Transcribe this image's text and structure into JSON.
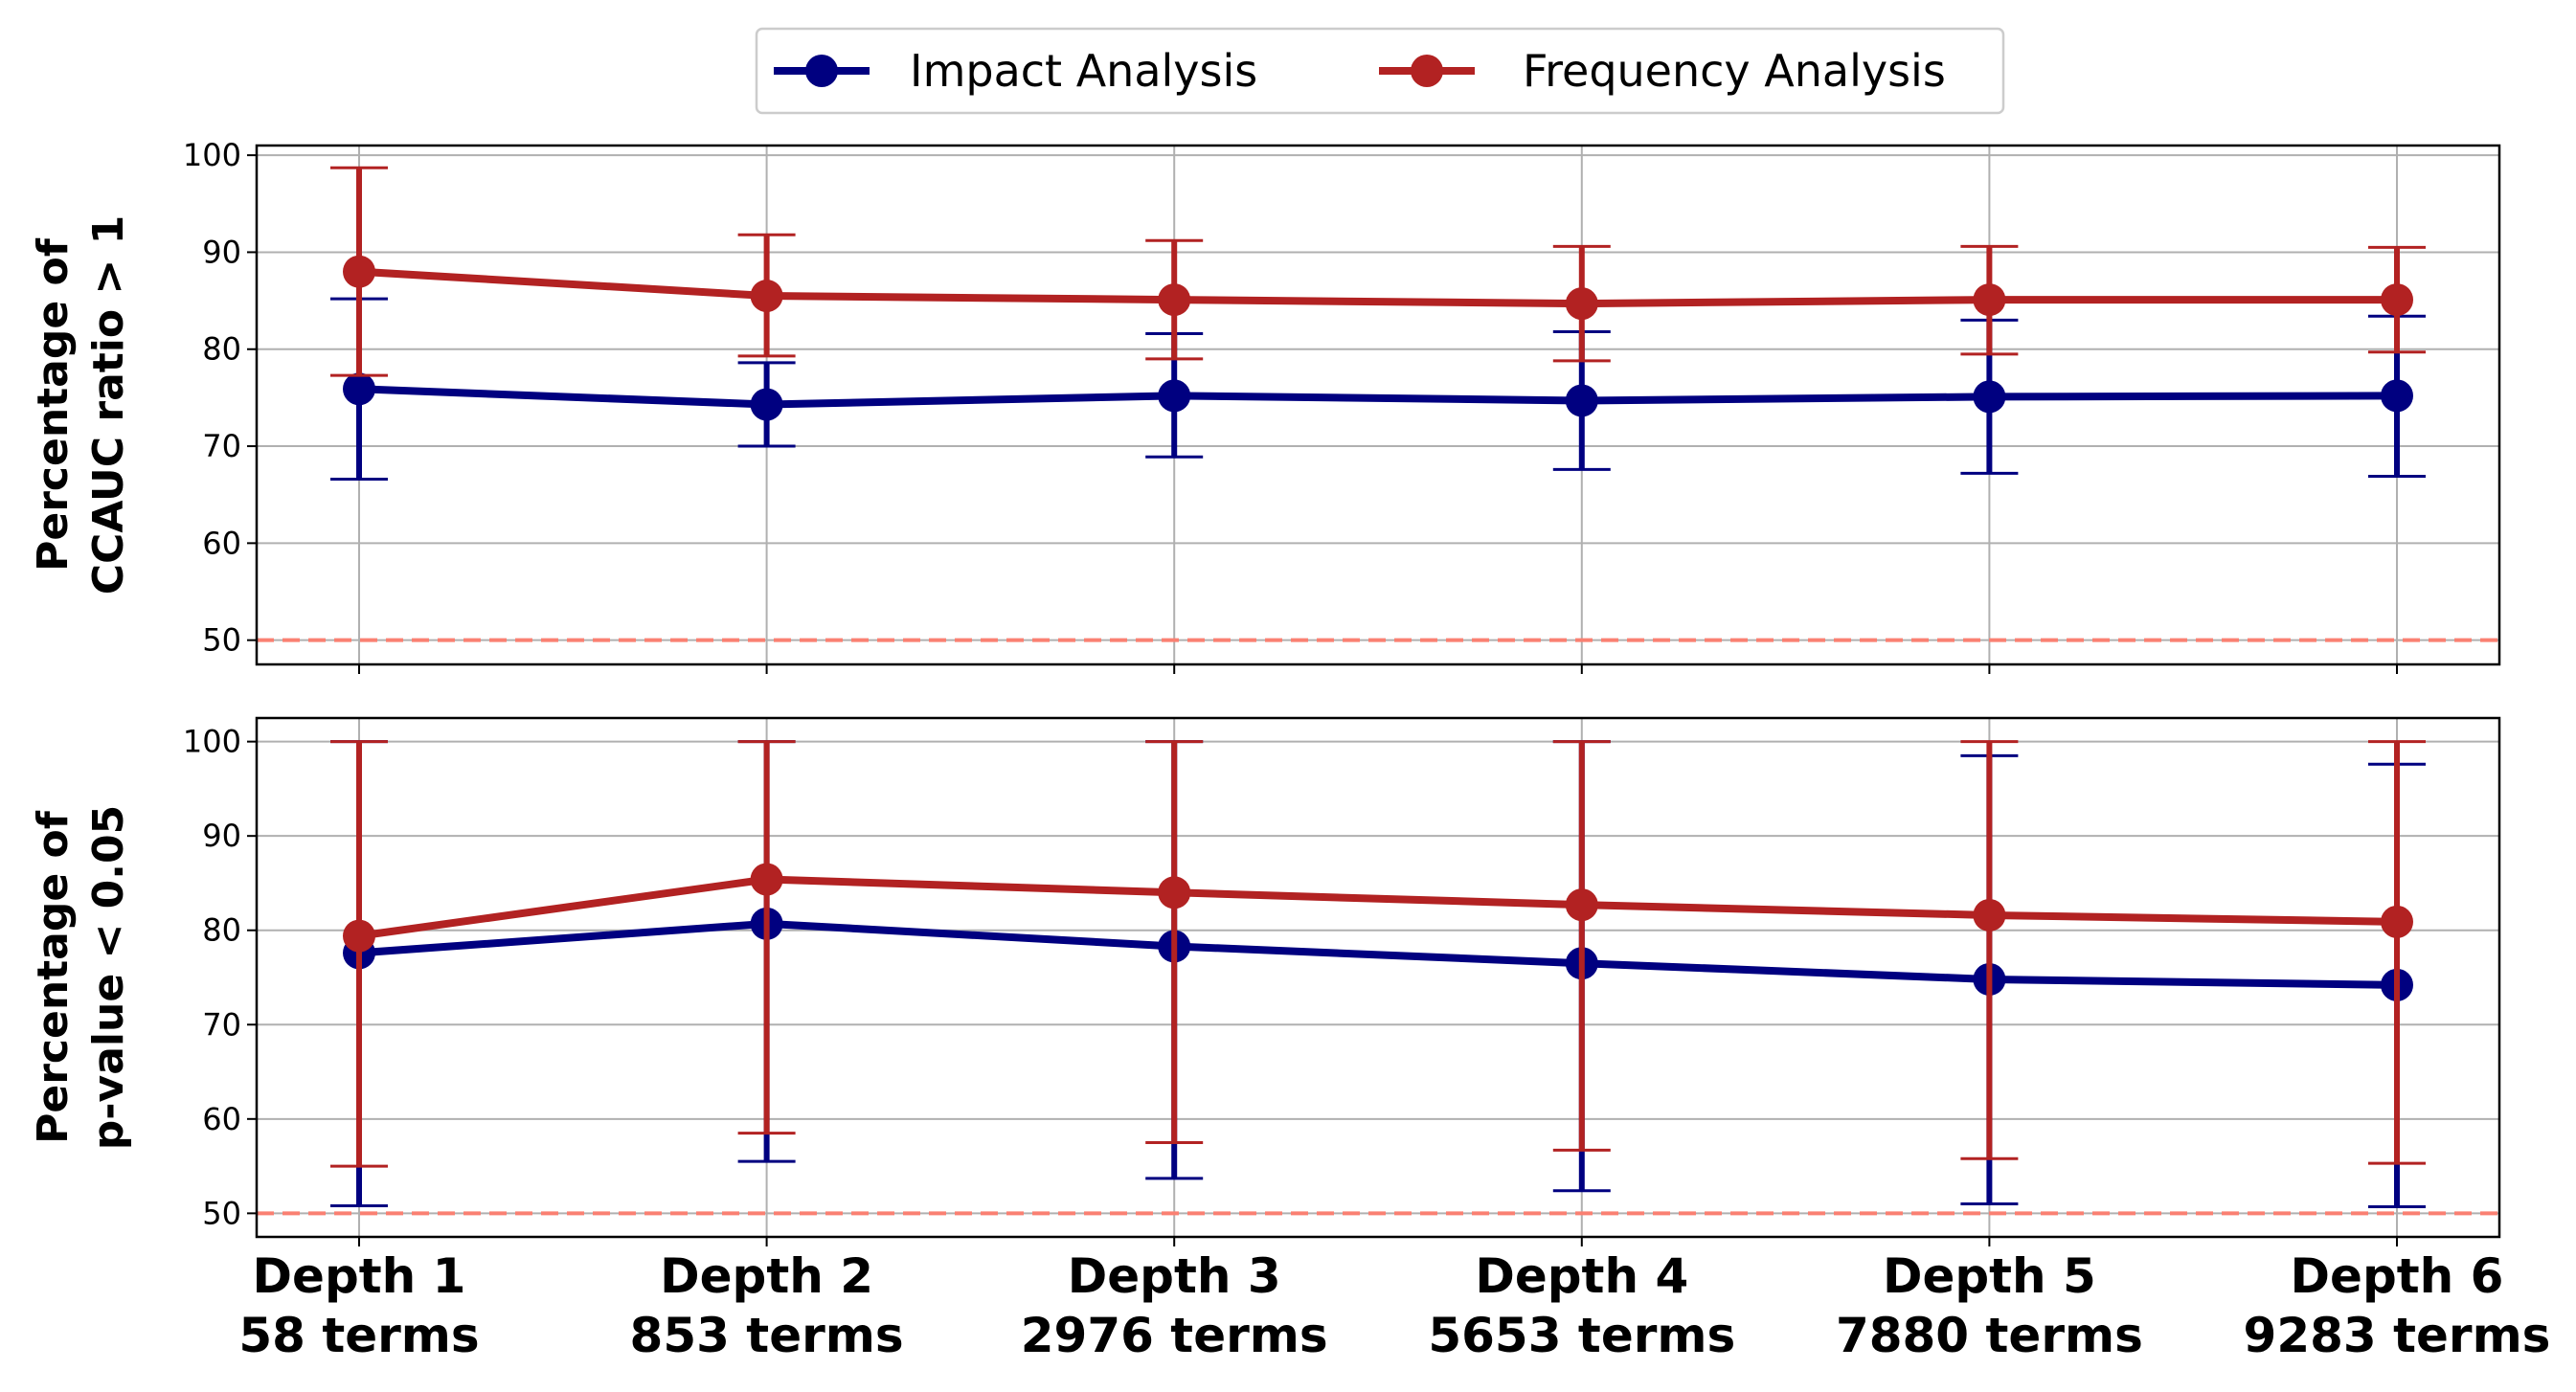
{
  "colors": {
    "impact": "#000080",
    "frequency": "#b22222",
    "reference": "#fa8072",
    "grid": "#b0b0b0"
  },
  "legend": {
    "position": "top-center",
    "items": [
      {
        "label": "Impact Analysis",
        "color": "#000080"
      },
      {
        "label": "Frequency Analysis",
        "color": "#b22222"
      }
    ]
  },
  "chart_data": [
    {
      "type": "line",
      "ylabel": [
        "Percentage of",
        "CCAUC ratio > 1"
      ],
      "ylim": [
        47.5,
        101
      ],
      "yticks": [
        50,
        60,
        70,
        80,
        90,
        100
      ],
      "grid": true,
      "reference_line": 50,
      "categories": [
        [
          "Depth 1",
          "58 terms"
        ],
        [
          "Depth 2",
          "853 terms"
        ],
        [
          "Depth 3",
          "2976 terms"
        ],
        [
          "Depth 4",
          "5653 terms"
        ],
        [
          "Depth 5",
          "7880 terms"
        ],
        [
          "Depth 6",
          "9283 terms"
        ]
      ],
      "series": [
        {
          "name": "Impact Analysis",
          "values": [
            75.9,
            74.3,
            75.2,
            74.7,
            75.1,
            75.2
          ],
          "err_low": [
            66.6,
            70.0,
            68.9,
            67.6,
            67.2,
            66.9
          ],
          "err_high": [
            85.2,
            78.6,
            81.6,
            81.8,
            83.0,
            83.4
          ]
        },
        {
          "name": "Frequency Analysis",
          "values": [
            88.0,
            85.5,
            85.1,
            84.7,
            85.1,
            85.1
          ],
          "err_low": [
            77.3,
            79.3,
            79.0,
            78.8,
            79.5,
            79.7
          ],
          "err_high": [
            98.7,
            91.8,
            91.2,
            90.6,
            90.6,
            90.5
          ]
        }
      ]
    },
    {
      "type": "line",
      "ylabel": [
        "Percentage of",
        "p-value < 0.05"
      ],
      "ylim": [
        47.5,
        102.5
      ],
      "yticks": [
        50,
        60,
        70,
        80,
        90,
        100
      ],
      "grid": true,
      "reference_line": 50,
      "categories": [
        [
          "Depth 1",
          "58 terms"
        ],
        [
          "Depth 2",
          "853 terms"
        ],
        [
          "Depth 3",
          "2976 terms"
        ],
        [
          "Depth 4",
          "5653 terms"
        ],
        [
          "Depth 5",
          "7880 terms"
        ],
        [
          "Depth 6",
          "9283 terms"
        ]
      ],
      "series": [
        {
          "name": "Impact Analysis",
          "values": [
            77.6,
            80.7,
            78.3,
            76.5,
            74.8,
            74.2
          ],
          "err_low": [
            50.8,
            55.5,
            53.7,
            52.4,
            51.0,
            50.7
          ],
          "err_high": [
            100.0,
            100.0,
            100.0,
            100.0,
            98.5,
            97.6
          ]
        },
        {
          "name": "Frequency Analysis",
          "values": [
            79.4,
            85.4,
            84.0,
            82.7,
            81.6,
            80.9
          ],
          "err_low": [
            55.0,
            58.5,
            57.5,
            56.7,
            55.8,
            55.3
          ],
          "err_high": [
            100.0,
            100.0,
            100.0,
            100.0,
            100.0,
            100.0
          ]
        }
      ]
    }
  ]
}
